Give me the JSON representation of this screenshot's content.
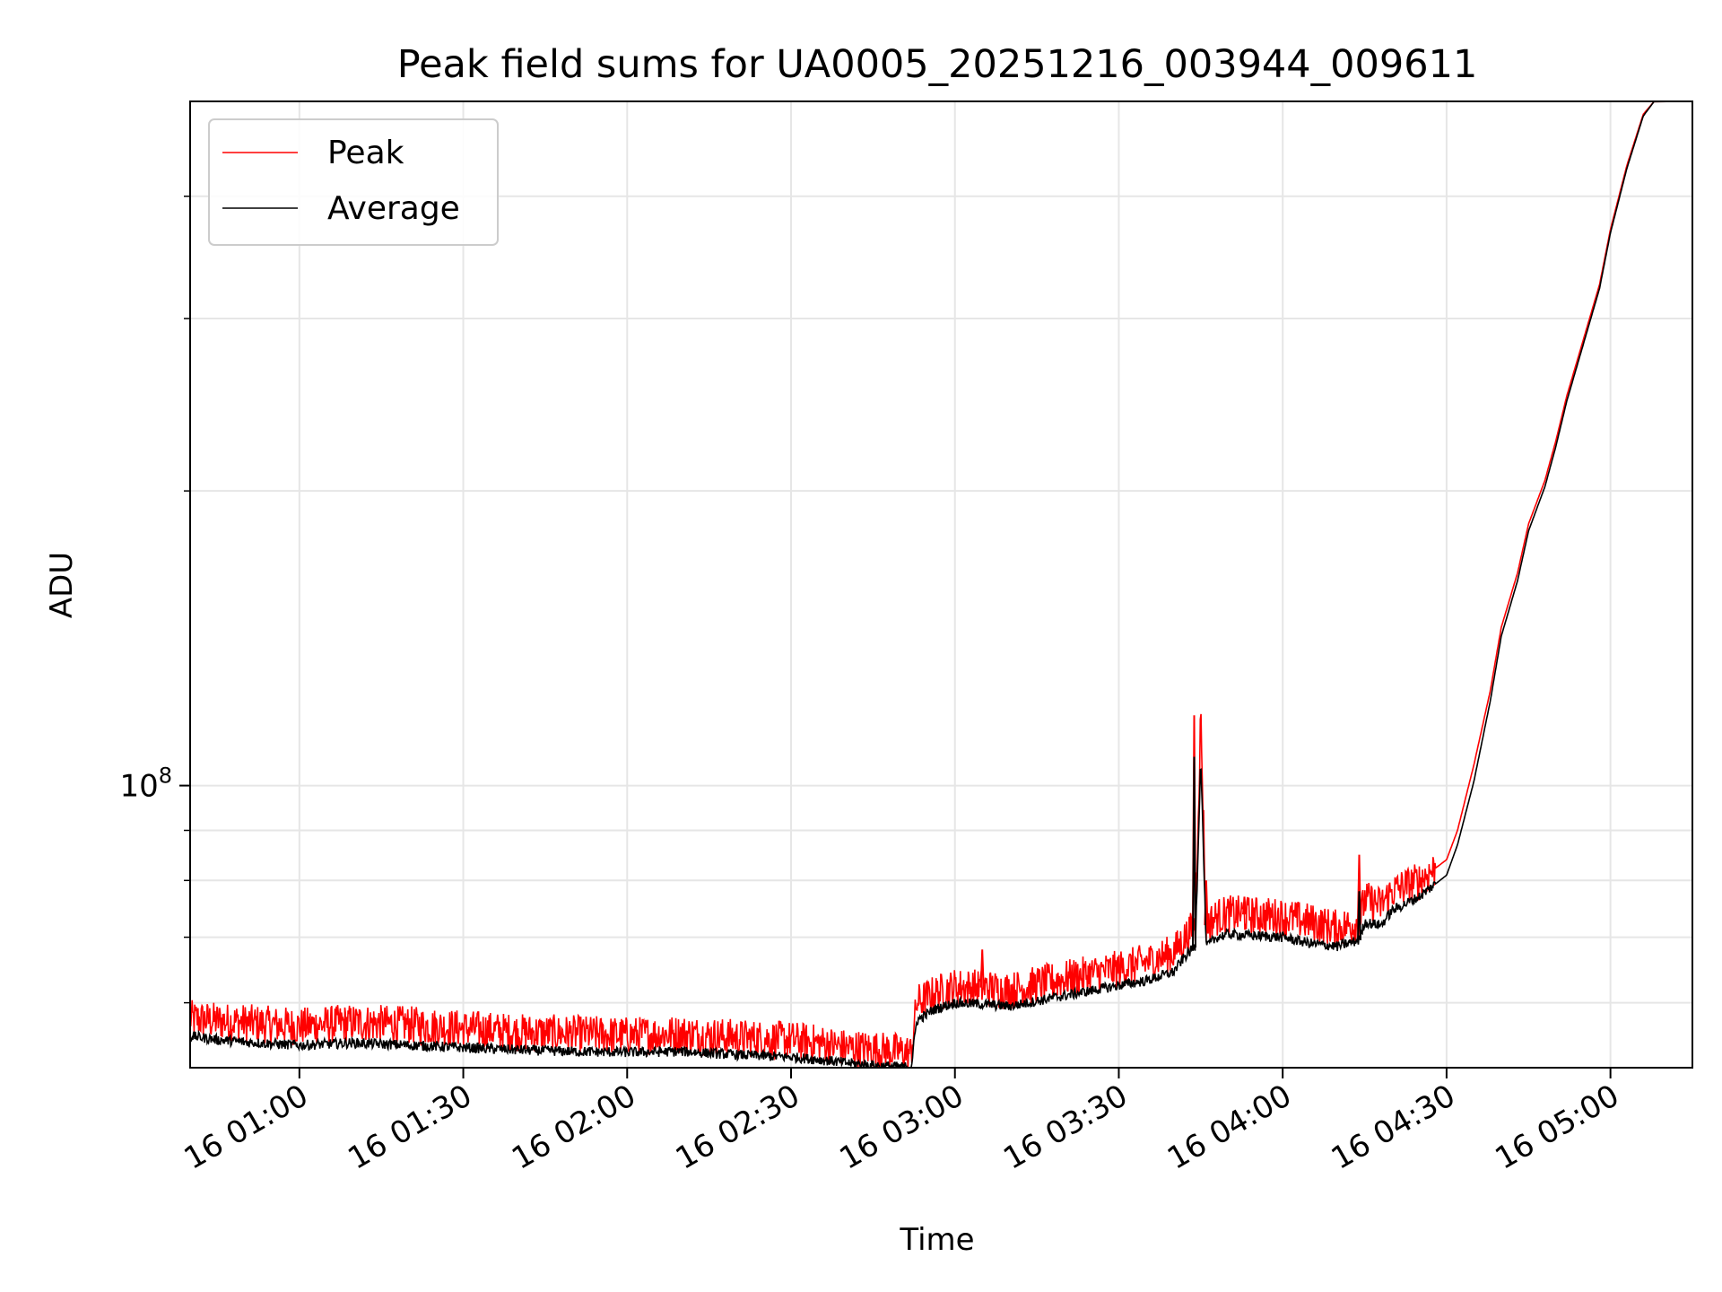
{
  "chart_data": {
    "type": "line",
    "title": "Peak field sums for UA0005_20251216_003944_009611",
    "xlabel": "Time",
    "ylabel": "ADU",
    "y_scale": "log",
    "ylim": [
      51500000,
      500000000
    ],
    "xlim": [
      "00:40",
      "05:15"
    ],
    "x_tick_labels": [
      "16 01:00",
      "16 01:30",
      "16 02:00",
      "16 02:30",
      "16 03:00",
      "16 03:30",
      "16 04:00",
      "16 04:30",
      "16 05:00"
    ],
    "x_tick_minutes": [
      60,
      90,
      120,
      150,
      180,
      210,
      240,
      270,
      300
    ],
    "y_major_tick_labels": [
      {
        "base": "10",
        "exp": "8"
      }
    ],
    "y_major_ticks": [
      100000000
    ],
    "y_minor_ticks": [
      60000000,
      70000000,
      80000000,
      90000000,
      200000000,
      300000000,
      400000000
    ],
    "grid": true,
    "legend_position": "top-left",
    "x_unit": "minutes since 16 00:00",
    "series": [
      {
        "name": "Peak",
        "color": "#ff0000",
        "x": [
          40,
          45,
          50,
          55,
          60,
          70,
          80,
          90,
          100,
          110,
          120,
          130,
          140,
          150,
          155,
          160,
          165,
          170,
          172,
          173,
          176,
          180,
          185,
          190,
          200,
          210,
          215,
          220,
          222,
          224,
          225,
          226,
          228,
          230,
          240,
          245,
          250,
          254,
          255,
          258,
          260,
          265,
          270,
          272,
          275,
          278,
          280,
          283,
          285,
          288,
          290,
          292,
          295,
          298,
          300,
          303,
          306,
          308
        ],
        "y": [
          57800000,
          57500000,
          57300000,
          57000000,
          56800000,
          57300000,
          57000000,
          56500000,
          56000000,
          55800000,
          55600000,
          55800000,
          55300000,
          55000000,
          54600000,
          54000000,
          53800000,
          53500000,
          53300000,
          60000000,
          61200000,
          62300000,
          62200000,
          61800000,
          63500000,
          65000000,
          66000000,
          67500000,
          69800000,
          72000000,
          118000000,
          72000000,
          73500000,
          74000000,
          73500000,
          72600000,
          71500000,
          72500000,
          76500000,
          75500000,
          78000000,
          80000000,
          84000000,
          90000000,
          105000000,
          125000000,
          145000000,
          165000000,
          185000000,
          205000000,
          225000000,
          250000000,
          285000000,
          325000000,
          370000000,
          430000000,
          485000000,
          500000000
        ],
        "spikes": [
          {
            "x": 185,
            "y": 68000000
          },
          {
            "x": 223.8,
            "y": 118000000
          },
          {
            "x": 226,
            "y": 80000000
          },
          {
            "x": 233,
            "y": 77000000
          },
          {
            "x": 254,
            "y": 85000000
          }
        ]
      },
      {
        "name": "Average",
        "color": "#000000",
        "x": [
          40,
          45,
          50,
          55,
          60,
          70,
          80,
          90,
          100,
          110,
          120,
          130,
          140,
          150,
          155,
          160,
          165,
          170,
          172,
          173,
          176,
          180,
          185,
          190,
          200,
          210,
          215,
          220,
          222,
          224,
          225,
          226,
          228,
          230,
          240,
          245,
          250,
          254,
          255,
          258,
          260,
          265,
          270,
          272,
          275,
          278,
          280,
          283,
          285,
          288,
          290,
          292,
          295,
          298,
          300,
          303,
          306,
          308
        ],
        "y": [
          55500000,
          55000000,
          54700000,
          54500000,
          54300000,
          54600000,
          54300000,
          54000000,
          53700000,
          53500000,
          53400000,
          53500000,
          53100000,
          52800000,
          52500000,
          52100000,
          51800000,
          51600000,
          51600000,
          57500000,
          59000000,
          60000000,
          59800000,
          59500000,
          61000000,
          62500000,
          63200000,
          64500000,
          66800000,
          68500000,
          107000000,
          68500000,
          70000000,
          70500000,
          70000000,
          69000000,
          68500000,
          69500000,
          72500000,
          72000000,
          74500000,
          77000000,
          81000000,
          87000000,
          101000000,
          122000000,
          142000000,
          162000000,
          182000000,
          202000000,
          222000000,
          247000000,
          282000000,
          322000000,
          367000000,
          427000000,
          483000000,
          500000000
        ],
        "spikes": [
          {
            "x": 223.8,
            "y": 107000000
          },
          {
            "x": 254,
            "y": 78000000
          }
        ]
      }
    ]
  }
}
